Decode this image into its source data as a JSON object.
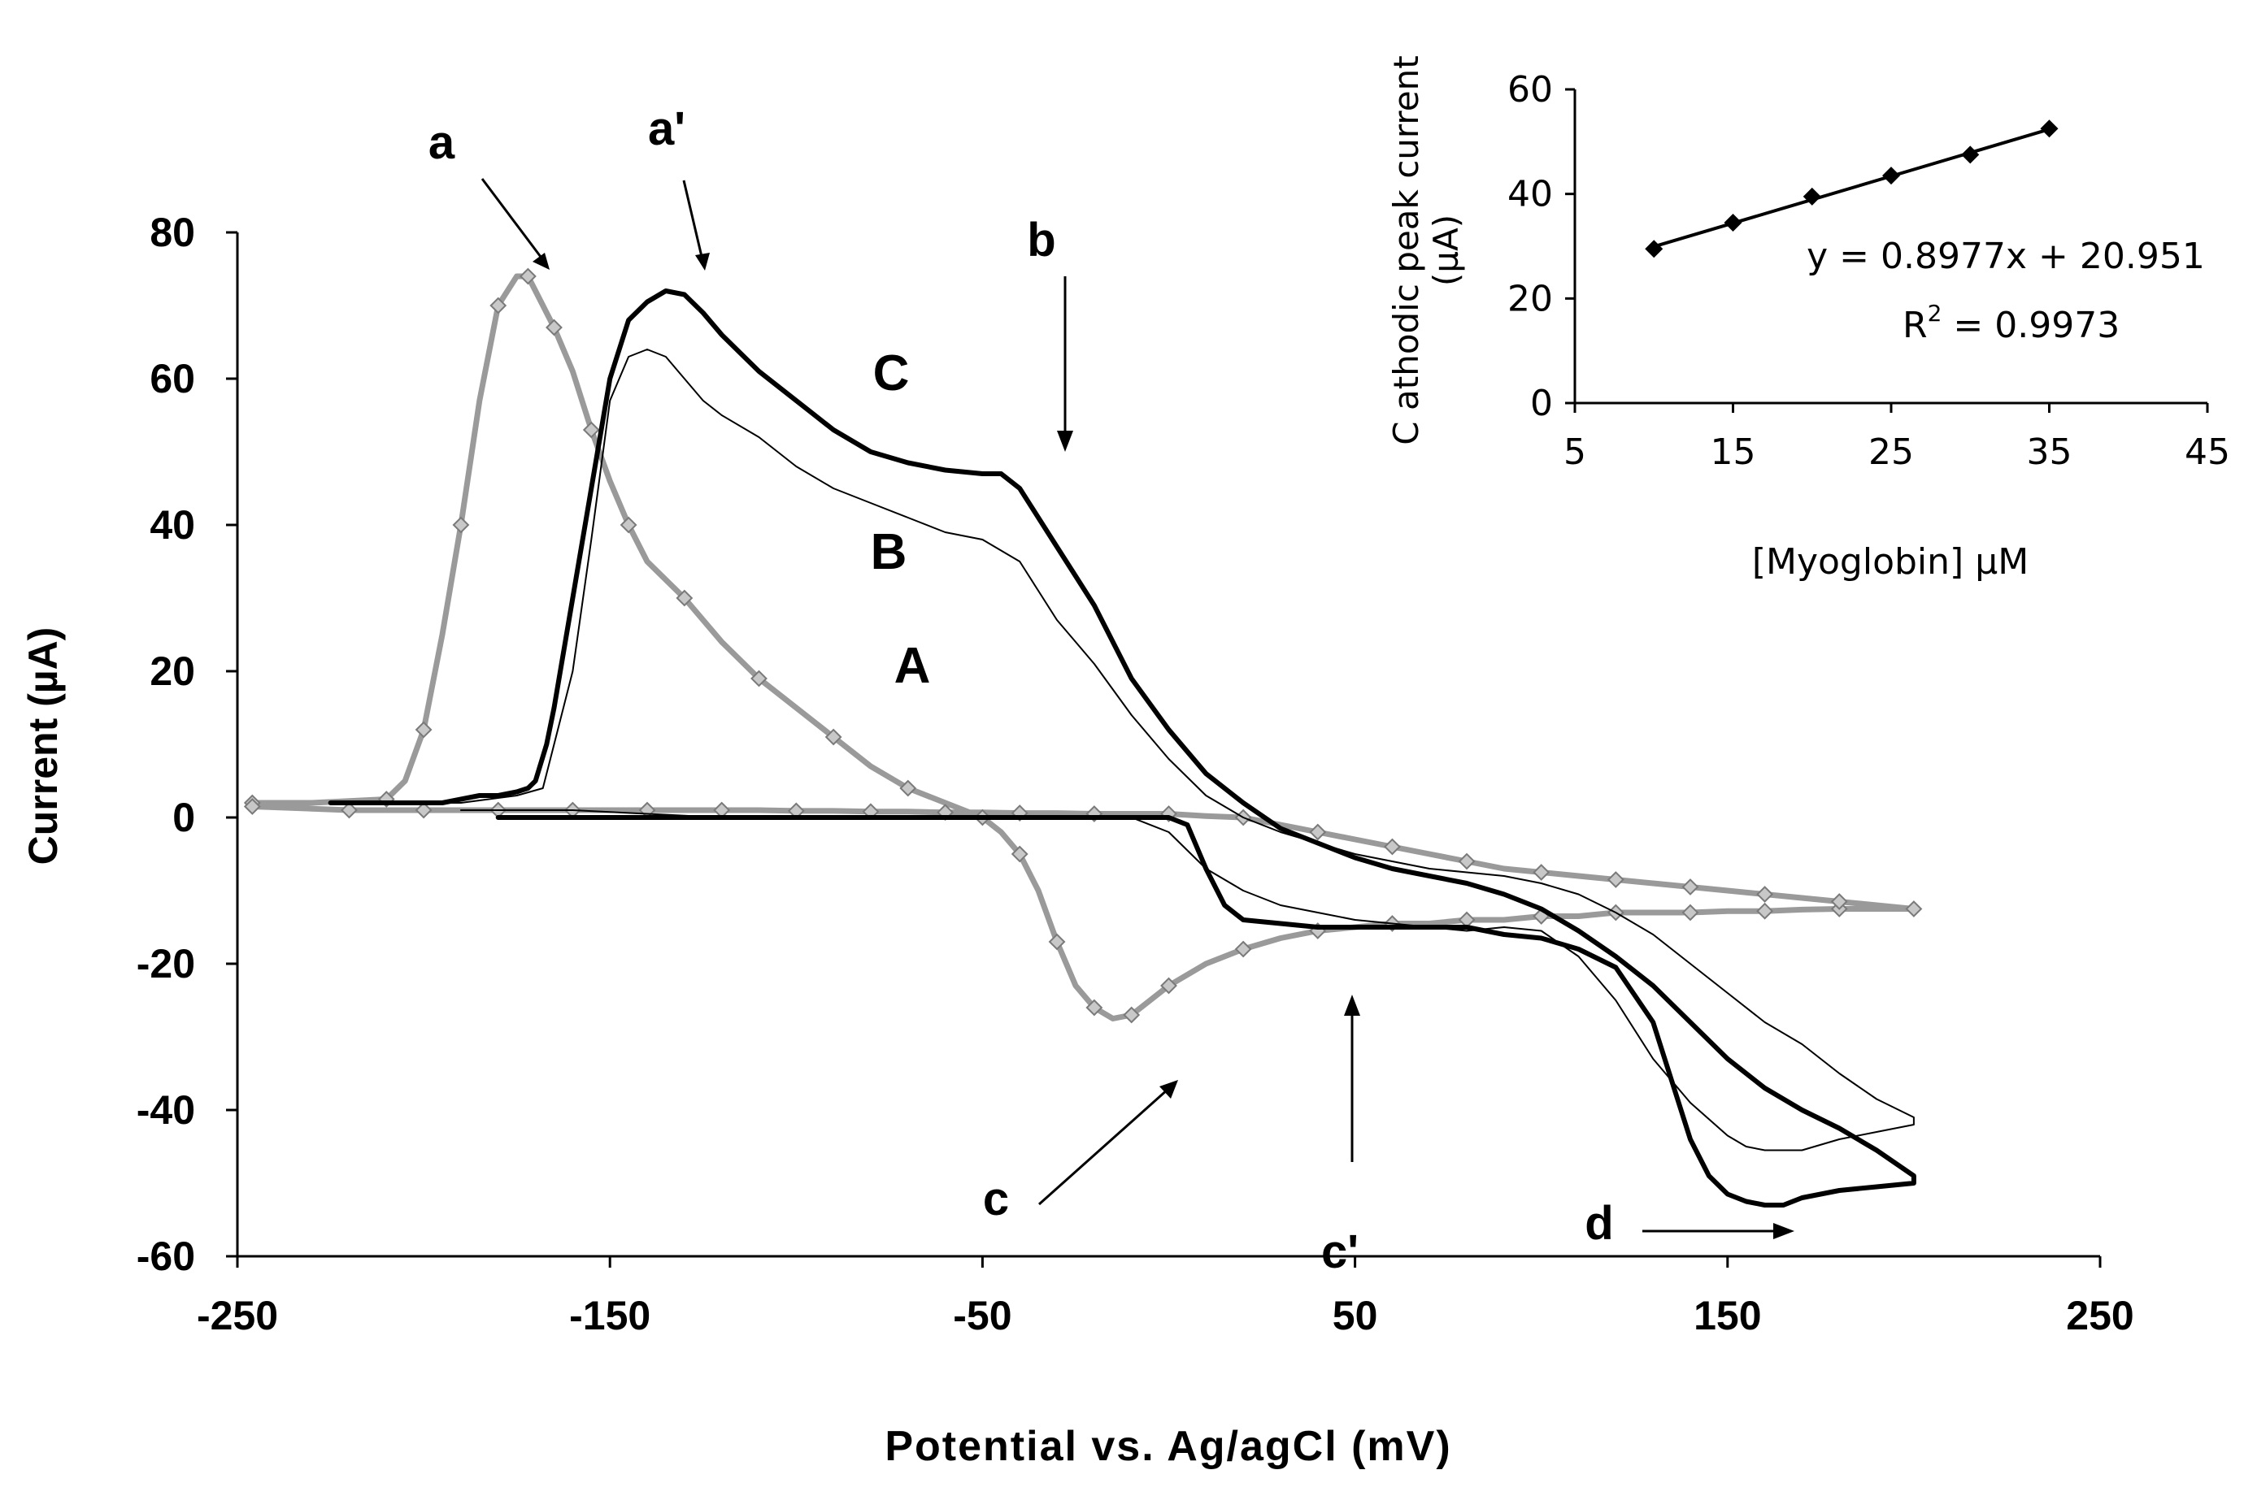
{
  "chart_data": [
    {
      "type": "line",
      "title": "",
      "xlabel": "Potential vs. Ag/agCl (mV)",
      "ylabel": "Current (µA)",
      "xlim": [
        -250,
        250
      ],
      "ylim": [
        -60,
        80
      ],
      "xticks": [
        -250,
        -150,
        -50,
        50,
        150,
        250
      ],
      "yticks": [
        80,
        60,
        40,
        20,
        0,
        -20,
        -40,
        -60
      ],
      "grid": false,
      "series": [
        {
          "name": "A",
          "style": "gray-marked",
          "x": [
            -246,
            -230,
            -210,
            -205,
            -200,
            -195,
            -190,
            -185,
            -180,
            -175,
            -172,
            -170,
            -165,
            -160,
            -155,
            -150,
            -145,
            -140,
            -130,
            -120,
            -110,
            -100,
            -90,
            -80,
            -70,
            -60,
            -50,
            -45,
            -40,
            -35,
            -30,
            -25,
            -20,
            -15,
            -10,
            -5,
            0,
            10,
            20,
            30,
            40,
            50,
            60,
            70,
            80,
            90,
            100,
            110,
            120,
            130,
            140,
            150,
            160,
            170,
            180,
            190,
            200,
            190,
            180,
            170,
            160,
            150,
            140,
            130,
            120,
            110,
            100,
            90,
            80,
            70,
            60,
            50,
            40,
            30,
            20,
            10,
            0,
            -10,
            -20,
            -30,
            -40,
            -50,
            -60,
            -70,
            -80,
            -90,
            -100,
            -110,
            -120,
            -130,
            -140,
            -150,
            -160,
            -170,
            -180,
            -190,
            -200,
            -210,
            -220,
            -230,
            -246
          ],
          "y": [
            2,
            2,
            2.5,
            5,
            12,
            25,
            40,
            57,
            70,
            74,
            74,
            72,
            67,
            61,
            53,
            46,
            40,
            35,
            30,
            24,
            19,
            15,
            11,
            7,
            4,
            2,
            0,
            -2,
            -5,
            -10,
            -17,
            -23,
            -26,
            -27.5,
            -27,
            -25,
            -23,
            -20,
            -18,
            -16.5,
            -15.5,
            -15,
            -14.5,
            -14.5,
            -14,
            -14,
            -13.5,
            -13.5,
            -13,
            -13,
            -13,
            -12.8,
            -12.8,
            -12.6,
            -12.5,
            -12.5,
            -12.5,
            -12,
            -11.5,
            -11,
            -10.5,
            -10,
            -9.5,
            -9,
            -8.5,
            -8,
            -7.5,
            -7,
            -6,
            -5,
            -4,
            -3,
            -2,
            -1,
            0,
            0.2,
            0.5,
            0.5,
            0.5,
            0.6,
            0.6,
            0.7,
            0.7,
            0.8,
            0.8,
            0.9,
            0.9,
            1,
            1,
            1,
            1,
            1,
            1,
            1,
            1,
            1,
            1,
            1,
            1,
            1.2,
            1.5
          ]
        },
        {
          "name": "B",
          "style": "thin-black",
          "x": [
            -215,
            -190,
            -175,
            -168,
            -165,
            -160,
            -155,
            -150,
            -145,
            -140,
            -135,
            -130,
            -125,
            -120,
            -110,
            -100,
            -90,
            -80,
            -70,
            -60,
            -50,
            -40,
            -35,
            -30,
            -25,
            -20,
            -10,
            0,
            10,
            20,
            30,
            40,
            50,
            60,
            70,
            80,
            90,
            100,
            110,
            120,
            130,
            140,
            150,
            160,
            170,
            180,
            190,
            200,
            200,
            190,
            180,
            170,
            160,
            155,
            150,
            140,
            130,
            120,
            110,
            100,
            90,
            80,
            70,
            60,
            50,
            40,
            30,
            20,
            10,
            0,
            -10,
            -20,
            -40,
            -60,
            -80,
            -100,
            -120,
            -140,
            -160,
            -180,
            -190
          ],
          "y": [
            2,
            2,
            3,
            4,
            10,
            20,
            38,
            57,
            63,
            64,
            63,
            60,
            57,
            55,
            52,
            48,
            45,
            43,
            41,
            39,
            38,
            35,
            31,
            27,
            24,
            21,
            14,
            8,
            3,
            0,
            -2,
            -3.5,
            -5,
            -6,
            -7,
            -7.5,
            -8,
            -9,
            -10.5,
            -13,
            -16,
            -20,
            -24,
            -28,
            -31,
            -35,
            -38.5,
            -41,
            -42,
            -43,
            -44,
            -45.5,
            -45.5,
            -45,
            -43.5,
            -39,
            -33,
            -25,
            -19,
            -15.5,
            -15,
            -15.5,
            -15,
            -14.5,
            -14,
            -13,
            -12,
            -10,
            -7,
            -2,
            0,
            0,
            0,
            0,
            0,
            0,
            0,
            0.5,
            1,
            1,
            1
          ]
        },
        {
          "name": "C",
          "style": "thick-black",
          "x": [
            -225,
            -195,
            -185,
            -180,
            -175,
            -172,
            -170,
            -167,
            -165,
            -160,
            -155,
            -150,
            -145,
            -140,
            -135,
            -130,
            -125,
            -120,
            -110,
            -100,
            -90,
            -80,
            -70,
            -60,
            -50,
            -45,
            -40,
            -35,
            -30,
            -25,
            -20,
            -10,
            0,
            10,
            20,
            30,
            40,
            50,
            60,
            70,
            80,
            90,
            100,
            110,
            120,
            130,
            140,
            150,
            160,
            170,
            180,
            190,
            200,
            200,
            190,
            180,
            170,
            165,
            160,
            155,
            150,
            145,
            140,
            135,
            130,
            120,
            110,
            100,
            90,
            80,
            70,
            60,
            50,
            40,
            30,
            20,
            15,
            10,
            5,
            0,
            -10,
            -20,
            -40,
            -60,
            -80,
            -100,
            -120,
            -140,
            -160,
            -180
          ],
          "y": [
            2,
            2,
            3,
            3,
            3.5,
            4,
            5,
            10,
            15,
            30,
            45,
            60,
            68,
            70.5,
            72,
            71.5,
            69,
            66,
            61,
            57,
            53,
            50,
            48.5,
            47.5,
            47,
            47,
            45,
            41,
            37,
            33,
            29,
            19,
            12,
            6,
            2,
            -1.5,
            -3.5,
            -5.5,
            -7,
            -8,
            -9,
            -10.5,
            -12.5,
            -15.5,
            -19,
            -23,
            -28,
            -33,
            -37,
            -40,
            -42.5,
            -45.5,
            -49,
            -50,
            -50.5,
            -51,
            -52,
            -53,
            -53,
            -52.5,
            -51.5,
            -49,
            -44,
            -36,
            -28,
            -20.5,
            -18,
            -16.5,
            -16,
            -15,
            -15,
            -15,
            -15,
            -15,
            -14.5,
            -14,
            -12,
            -7,
            -1,
            0,
            0,
            0,
            0,
            0,
            0,
            0,
            0,
            0,
            0,
            0
          ]
        }
      ],
      "curve_labels": [
        "A",
        "B",
        "C"
      ],
      "annotations": [
        "a",
        "a'",
        "b",
        "c",
        "c'",
        "d"
      ]
    },
    {
      "type": "scatter",
      "title": "",
      "xlabel": "[Myoglobin] µM",
      "ylabel_line1": "C athodic peak current",
      "ylabel_line2": "(µA)",
      "xlim": [
        5,
        45
      ],
      "ylim": [
        0,
        60
      ],
      "xticks": [
        5,
        15,
        25,
        35,
        45
      ],
      "yticks": [
        60,
        40,
        20,
        0
      ],
      "grid": false,
      "x": [
        10,
        15,
        20,
        25,
        30,
        35
      ],
      "y": [
        29.5,
        34.5,
        39.5,
        43.5,
        47.5,
        52.5
      ],
      "trendline": {
        "slope": 0.8977,
        "intercept": 20.951
      },
      "equation_text": "y = 0.8977x + 20.951",
      "r2_prefix": "R",
      "r2_sup": "2",
      "r2_rest": " = 0.9973"
    }
  ]
}
